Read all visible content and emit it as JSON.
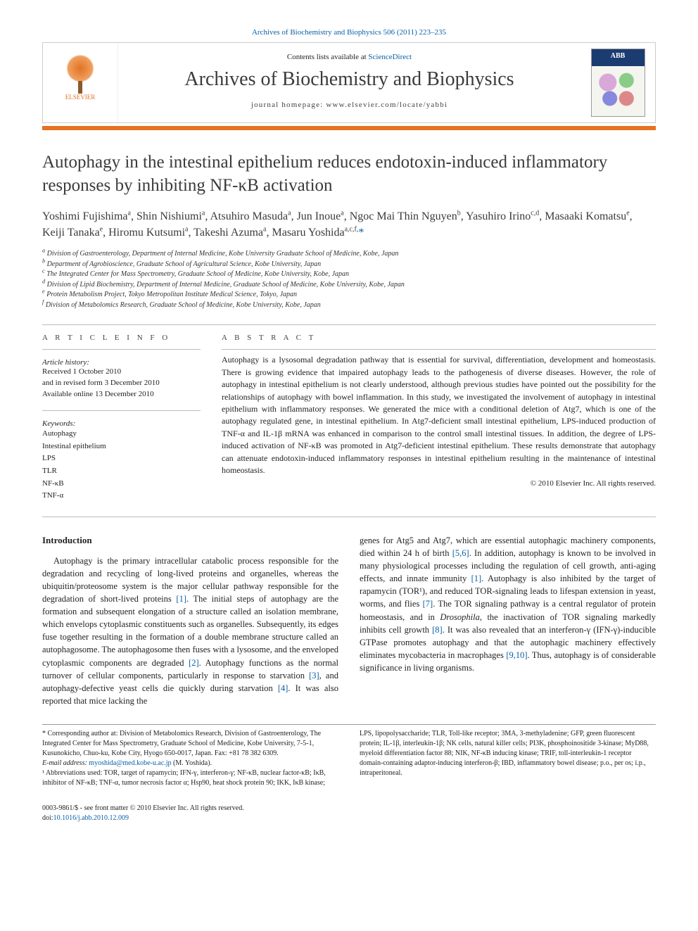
{
  "citation": "Archives of Biochemistry and Biophysics 506 (2011) 223–235",
  "header": {
    "contents_prefix": "Contents lists available at ",
    "contents_link": "ScienceDirect",
    "journal_name": "Archives of Biochemistry and Biophysics",
    "homepage_prefix": "journal homepage: ",
    "homepage_url": "www.elsevier.com/locate/yabbi",
    "publisher": "ELSEVIER",
    "cover_label": "ABB"
  },
  "title": "Autophagy in the intestinal epithelium reduces endotoxin-induced inflammatory responses by inhibiting NF-κB activation",
  "authors_html": "Yoshimi Fujishima<sup>a</sup>, Shin Nishiumi<sup>a</sup>, Atsuhiro Masuda<sup>a</sup>, Jun Inoue<sup>a</sup>, Ngoc Mai Thin Nguyen<sup>b</sup>, Yasuhiro Irino<sup>c,d</sup>, Masaaki Komatsu<sup>e</sup>, Keiji Tanaka<sup>e</sup>, Hiromu Kutsumi<sup>a</sup>, Takeshi Azuma<sup>a</sup>, Masaru Yoshida<sup>a,c,f,</sup><a href='#'>*</a>",
  "affiliations": [
    "a Division of Gastroenterology, Department of Internal Medicine, Kobe University Graduate School of Medicine, Kobe, Japan",
    "b Department of Agrobioscience, Graduate School of Agricultural Science, Kobe University, Japan",
    "c The Integrated Center for Mass Spectrometry, Graduate School of Medicine, Kobe University, Kobe, Japan",
    "d Division of Lipid Biochemistry, Department of Internal Medicine, Graduate School of Medicine, Kobe University, Kobe, Japan",
    "e Protein Metabolism Project, Tokyo Metropolitan Institute Medical Science, Tokyo, Japan",
    "f Division of Metabolomics Research, Graduate School of Medicine, Kobe University, Kobe, Japan"
  ],
  "info": {
    "head": "A R T I C L E   I N F O",
    "history_label": "Article history:",
    "history": [
      "Received 1 October 2010",
      "and in revised form 3 December 2010",
      "Available online 13 December 2010"
    ],
    "keywords_label": "Keywords:",
    "keywords": [
      "Autophagy",
      "Intestinal epithelium",
      "LPS",
      "TLR",
      "NF-κB",
      "TNF-α"
    ]
  },
  "abstract": {
    "head": "A B S T R A C T",
    "text": "Autophagy is a lysosomal degradation pathway that is essential for survival, differentiation, development and homeostasis. There is growing evidence that impaired autophagy leads to the pathogenesis of diverse diseases. However, the role of autophagy in intestinal epithelium is not clearly understood, although previous studies have pointed out the possibility for the relationships of autophagy with bowel inflammation. In this study, we investigated the involvement of autophagy in intestinal epithelium with inflammatory responses. We generated the mice with a conditional deletion of Atg7, which is one of the autophagy regulated gene, in intestinal epithelium. In Atg7-deficient small intestinal epithelium, LPS-induced production of TNF-α and IL-1β mRNA was enhanced in comparison to the control small intestinal tissues. In addition, the degree of LPS-induced activation of NF-κB was promoted in Atg7-deficient intestinal epithelium. These results demonstrate that autophagy can attenuate endotoxin-induced inflammatory responses in intestinal epithelium resulting in the maintenance of intestinal homeostasis.",
    "copyright": "© 2010 Elsevier Inc. All rights reserved."
  },
  "body": {
    "intro_head": "Introduction",
    "col1": "Autophagy is the primary intracellular catabolic process responsible for the degradation and recycling of long-lived proteins and organelles, whereas the ubiquitin/proteosome system is the major cellular pathway responsible for the degradation of short-lived proteins [1]. The initial steps of autophagy are the formation and subsequent elongation of a structure called an isolation membrane, which envelops cytoplasmic constituents such as organelles. Subsequently, its edges fuse together resulting in the formation of a double membrane structure called an autophagosome. The autophagosome then fuses with a lysosome, and the enveloped cytoplasmic components are degraded [2]. Autophagy functions as the normal turnover of cellular components, particularly in response to starvation [3], and autophagy-defective yeast cells die quickly during starvation [4]. It was also reported that mice lacking the",
    "col2": "genes for Atg5 and Atg7, which are essential autophagic machinery components, died within 24 h of birth [5,6]. In addition, autophagy is known to be involved in many physiological processes including the regulation of cell growth, anti-aging effects, and innate immunity [1]. Autophagy is also inhibited by the target of rapamycin (TOR¹), and reduced TOR-signaling leads to lifespan extension in yeast, worms, and flies [7]. The TOR signaling pathway is a central regulator of protein homeostasis, and in Drosophila, the inactivation of TOR signaling markedly inhibits cell growth [8]. It was also revealed that an interferon-γ (IFN-γ)-inducible GTPase promotes autophagy and that the autophagic machinery effectively eliminates mycobacteria in macrophages [9,10]. Thus, autophagy is of considerable significance in living organisms.",
    "refs": [
      "1",
      "2",
      "3",
      "4",
      "5",
      "6",
      "7",
      "8",
      "9",
      "10"
    ]
  },
  "footnotes": {
    "corr": "* Corresponding author at: Division of Metabolomics Research, Division of Gastroenterology, The Integrated Center for Mass Spectrometry, Graduate School of Medicine, Kobe University, 7-5-1, Kusunokicho, Chuo-ku, Kobe City, Hyogo 650-0017, Japan. Fax: +81 78 382 6309.",
    "email_label": "E-mail address:",
    "email": "myoshida@med.kobe-u.ac.jp",
    "email_person": "(M. Yoshida).",
    "abbrev": "¹ Abbreviations used: TOR, target of rapamycin; IFN-γ, interferon-γ; NF-κB, nuclear factor-κB; IκB, inhibitor of NF-κB; TNF-α, tumor necrosis factor α; Hsp90, heat shock protein 90; IKK, IκB kinase; LPS, lipopolysaccharide; TLR, Toll-like receptor; 3MA, 3-methyladenine; GFP, green fluorescent protein; IL-1β, interleukin-1β; NK cells, natural killer cells; PI3K, phosphoinositide 3-kinase; MyD88, myeloid differentiation factor 88; NIK, NF-κB inducing kinase; TRIF, toll-interleukin-1 receptor domain-containing adaptor-inducing interferon-β; IBD, inflammatory bowel disease; p.o., per os; i.p., intraperitoneal."
  },
  "doi": {
    "line1": "0003-9861/$ - see front matter © 2010 Elsevier Inc. All rights reserved.",
    "line2_prefix": "doi:",
    "line2_link": "10.1016/j.abb.2010.12.009"
  },
  "colors": {
    "accent": "#e37222",
    "link": "#0a5fa5",
    "text": "#222222",
    "rule": "#bbbbbb"
  }
}
